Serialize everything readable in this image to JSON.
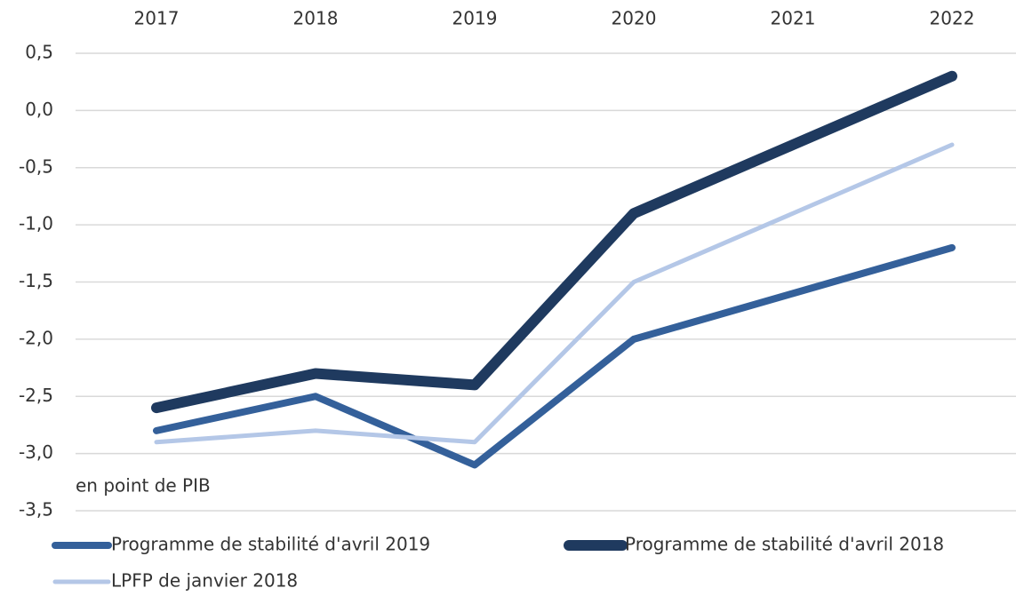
{
  "chart_data": {
    "type": "line",
    "annotation": "en point de PIB",
    "categories": [
      "2017",
      "2018",
      "2019",
      "2020",
      "2021",
      "2022"
    ],
    "series": [
      {
        "name": "Programme de stabilité d'avril 2019",
        "color": "#34609a",
        "values": [
          -2.8,
          -2.5,
          -3.1,
          -2.0,
          -1.6,
          -1.2
        ]
      },
      {
        "name": "Programme de stabilité d'avril 2018",
        "color": "#1f3a5f",
        "values": [
          -2.6,
          -2.3,
          -2.4,
          -0.9,
          -0.3,
          0.3
        ]
      },
      {
        "name": "LPFP de janvier 2018",
        "color": "#b4c7e7",
        "values": [
          -2.9,
          -2.8,
          -2.9,
          -1.5,
          -0.9,
          -0.3
        ]
      }
    ],
    "ylim": [
      -3.5,
      0.5
    ],
    "yticks": [
      {
        "value": 0.5,
        "label": "0,5"
      },
      {
        "value": 0,
        "label": "0,0"
      },
      {
        "value": -0.5,
        "label": "-0,5"
      },
      {
        "value": -1,
        "label": "-1,0"
      },
      {
        "value": -1.5,
        "label": "-1,5"
      },
      {
        "value": -2,
        "label": "-2,0"
      },
      {
        "value": -2.5,
        "label": "-2,5"
      },
      {
        "value": -3,
        "label": "-3,0"
      },
      {
        "value": -3.5,
        "label": "-3,5"
      }
    ],
    "grid": true,
    "legend": "bottom"
  }
}
